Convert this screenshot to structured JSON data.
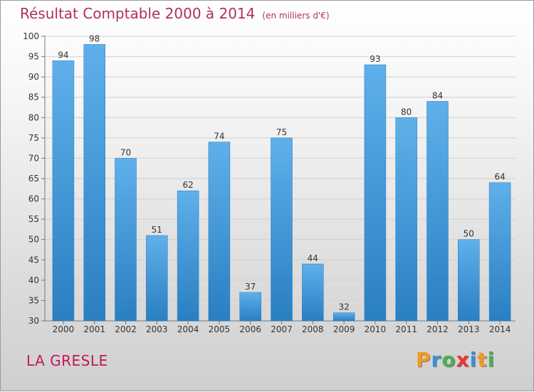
{
  "title": "Résultat Comptable 2000 à 2014",
  "subtitle": "(en milliers d'€)",
  "location": "LA GRESLE",
  "logo": {
    "letters": [
      "P",
      "r",
      "o",
      "x",
      "i",
      "t",
      "i"
    ],
    "colors": [
      "#f39a1f",
      "#3a8fd8",
      "#4caf50",
      "#e53935",
      "#3a8fd8",
      "#f39a1f",
      "#4caf50"
    ]
  },
  "colors": {
    "bar_light": "#5fb0ea",
    "bar_dark": "#2a7fc2",
    "title": "#b0305e",
    "footer": "#c2185b"
  },
  "chart_data": {
    "type": "bar",
    "categories": [
      "2000",
      "2001",
      "2002",
      "2003",
      "2004",
      "2005",
      "2006",
      "2007",
      "2008",
      "2009",
      "2010",
      "2011",
      "2012",
      "2013",
      "2014"
    ],
    "values": [
      94,
      98,
      70,
      51,
      62,
      74,
      37,
      75,
      44,
      32,
      93,
      80,
      84,
      50,
      64
    ],
    "ylim": [
      30,
      100
    ],
    "yticks": [
      30,
      35,
      40,
      45,
      50,
      55,
      60,
      65,
      70,
      75,
      80,
      85,
      90,
      95,
      100
    ],
    "grid": true
  }
}
